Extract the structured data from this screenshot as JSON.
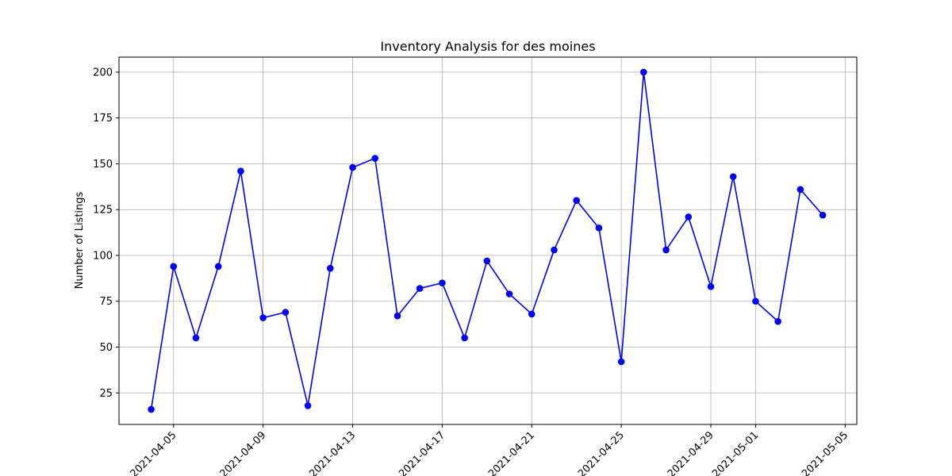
{
  "chart_data": {
    "type": "line",
    "title": "Inventory Analysis for des moines",
    "xlabel": "",
    "ylabel": "Number of Listings",
    "x": [
      "2021-04-04",
      "2021-04-05",
      "2021-04-06",
      "2021-04-07",
      "2021-04-08",
      "2021-04-09",
      "2021-04-10",
      "2021-04-11",
      "2021-04-12",
      "2021-04-13",
      "2021-04-14",
      "2021-04-15",
      "2021-04-16",
      "2021-04-17",
      "2021-04-18",
      "2021-04-19",
      "2021-04-20",
      "2021-04-21",
      "2021-04-22",
      "2021-04-23",
      "2021-04-24",
      "2021-04-25",
      "2021-04-26",
      "2021-04-27",
      "2021-04-28",
      "2021-04-29",
      "2021-04-30",
      "2021-05-01",
      "2021-05-02",
      "2021-05-03",
      "2021-05-04"
    ],
    "series": [
      {
        "name": "",
        "color": "#0000ff",
        "values": [
          16,
          94,
          55,
          94,
          146,
          66,
          69,
          18,
          93,
          148,
          153,
          67,
          82,
          85,
          55,
          97,
          79,
          68,
          103,
          130,
          115,
          42,
          200,
          103,
          121,
          83,
          143,
          75,
          64,
          136,
          122
        ]
      }
    ],
    "xticks": [
      "2021-04-05",
      "2021-04-09",
      "2021-04-13",
      "2021-04-17",
      "2021-04-21",
      "2021-04-25",
      "2021-04-29",
      "2021-05-01",
      "2021-05-05"
    ],
    "yticks": [
      25,
      50,
      75,
      100,
      125,
      150,
      175,
      200
    ],
    "xlim": [
      "2021-04-02 13:30",
      "2021-05-05 12:30"
    ],
    "ylim": [
      7.8,
      208.2
    ],
    "grid": true
  }
}
